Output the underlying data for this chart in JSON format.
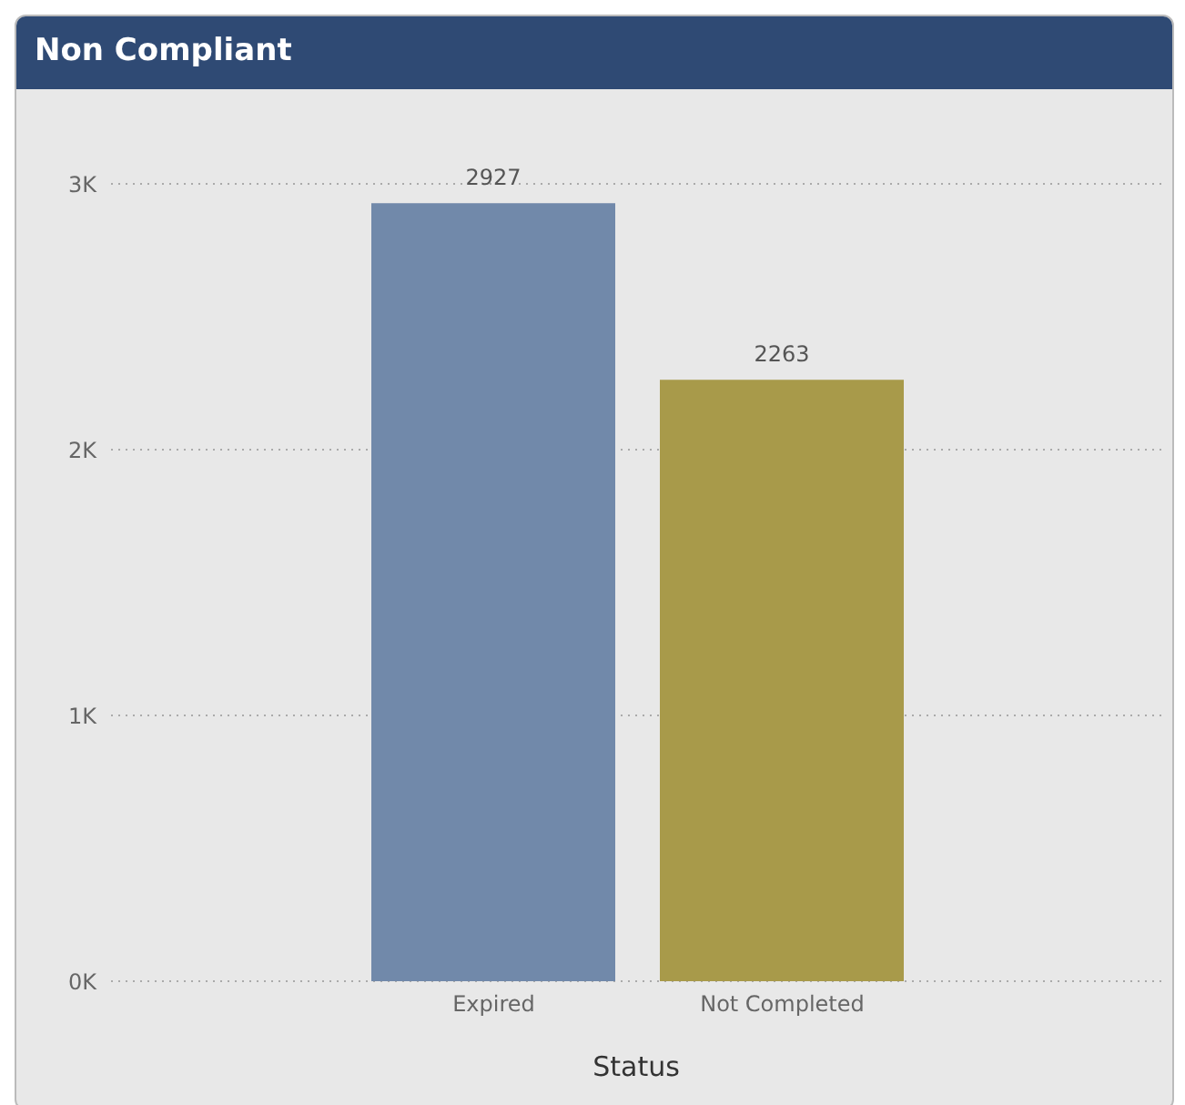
{
  "chart_data": {
    "type": "bar",
    "title": "Non Compliant",
    "xlabel": "Status",
    "categories": [
      "Expired",
      "Not Completed"
    ],
    "values": [
      2927,
      2263
    ],
    "colors": [
      "#7189aa",
      "#a89a4a"
    ],
    "ylim": [
      0,
      3000
    ],
    "yticks": [
      {
        "value": 0,
        "label": "0K"
      },
      {
        "value": 1000,
        "label": "1K"
      },
      {
        "value": 2000,
        "label": "2K"
      },
      {
        "value": 3000,
        "label": "3K"
      }
    ],
    "grid": "y",
    "data_labels": true,
    "legend": false
  }
}
